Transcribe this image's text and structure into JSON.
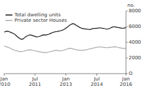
{
  "chart_data": {
    "type": "line",
    "ylabel": "no.",
    "categories": [
      "Jan\n2010",
      null,
      null,
      null,
      null,
      null,
      null,
      null,
      null,
      null,
      null,
      null,
      null,
      null,
      null,
      null,
      null,
      null,
      "Jul\n2011",
      null,
      null,
      null,
      null,
      null,
      null,
      null,
      null,
      null,
      null,
      null,
      null,
      null,
      null,
      null,
      null,
      null,
      "Jan\n2013",
      null,
      null,
      null,
      null,
      null,
      null,
      null,
      null,
      null,
      null,
      null,
      null,
      null,
      null,
      null,
      null,
      null,
      "Jul\n2014",
      null,
      null,
      null,
      null,
      null,
      null,
      null,
      null,
      null,
      null,
      null,
      null,
      null,
      null,
      null,
      null,
      "Jan\n2016"
    ],
    "series": [
      {
        "name": "Total dwelling units",
        "color": "#1a1a1a",
        "values": [
          5300,
          5380,
          5420,
          5350,
          5250,
          5150,
          5050,
          4850,
          4650,
          4500,
          4380,
          4420,
          4600,
          4780,
          4850,
          4950,
          4900,
          4820,
          4750,
          4680,
          4720,
          4780,
          4880,
          4950,
          4920,
          4970,
          5020,
          5120,
          5220,
          5300,
          5350,
          5380,
          5420,
          5480,
          5550,
          5650,
          5800,
          5950,
          6150,
          6280,
          6380,
          6320,
          6150,
          6050,
          5900,
          5800,
          5750,
          5700,
          5680,
          5650,
          5620,
          5700,
          5750,
          5780,
          5800,
          5820,
          5850,
          5800,
          5780,
          5720,
          5680,
          5720,
          5820,
          5920,
          5980,
          5950,
          5900,
          5860,
          5820,
          5780,
          5820,
          5880
        ]
      },
      {
        "name": "Private sector Houses",
        "color": "#aaaaaa",
        "values": [
          3500,
          3450,
          3380,
          3300,
          3200,
          3080,
          2980,
          2920,
          2870,
          2820,
          2810,
          2850,
          2900,
          2960,
          3010,
          3050,
          3010,
          2960,
          2910,
          2860,
          2820,
          2770,
          2720,
          2700,
          2680,
          2710,
          2760,
          2820,
          2870,
          2920,
          2960,
          2970,
          2920,
          2910,
          2950,
          3000,
          3080,
          3180,
          3230,
          3200,
          3160,
          3110,
          3060,
          3010,
          2990,
          2960,
          2990,
          3010,
          3060,
          3110,
          3160,
          3210,
          3260,
          3310,
          3360,
          3390,
          3410,
          3390,
          3360,
          3330,
          3310,
          3330,
          3360,
          3390,
          3420,
          3400,
          3370,
          3320,
          3270,
          3220,
          3200,
          3220
        ]
      }
    ],
    "ylim": [
      0,
      8000
    ],
    "yticks": [
      {
        "value": 0,
        "label": "O"
      },
      2000,
      4000,
      6000,
      8000
    ],
    "grid": false,
    "legend": "upper left"
  }
}
